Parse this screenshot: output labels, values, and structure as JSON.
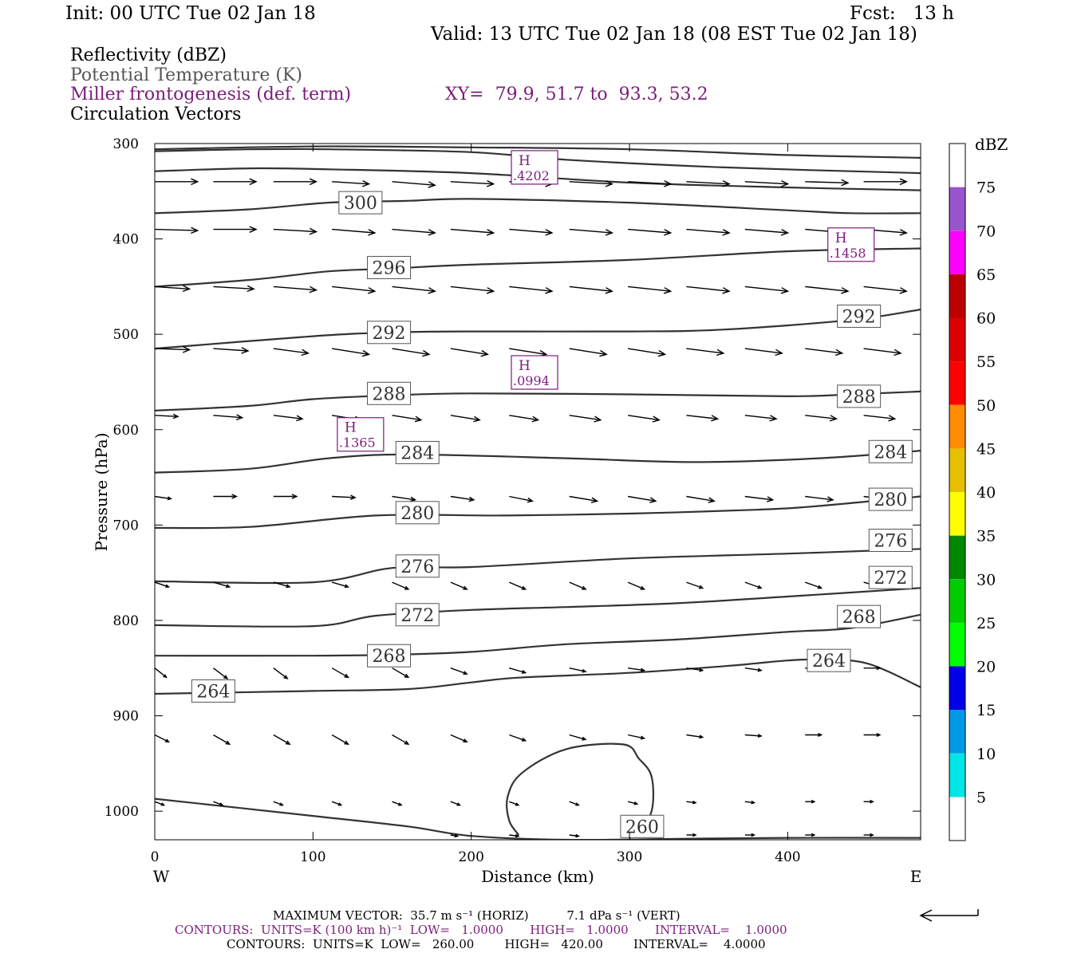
{
  "header": {
    "init": "Init: 00 UTC Tue 02 Jan 18",
    "fcst": "Fcst:   13 h",
    "valid": "Valid: 13 UTC Tue 02 Jan 18 (08 EST Tue 02 Jan 18)",
    "field1": "Reflectivity (dBZ)",
    "field2": "Potential Temperature (K)",
    "field3": "Miller frontogenesis (def. term)",
    "xy": "XY=  79.9, 51.7 to  93.3, 53.2",
    "field4": "Circulation Vectors"
  },
  "colors": {
    "theta": "#333333",
    "frontogenesis": "#7b1c7b",
    "vectors": "#000000"
  },
  "footer": {
    "max_vector": "MAXIMUM VECTOR:  35.7 m s⁻¹ (HORIZ)          7.1 dPa s⁻¹ (VERT)",
    "contours_fg": "CONTOURS:  UNITS=K (100 km h)⁻¹  LOW=   1.0000       HIGH=   1.0000       INTERVAL=    1.0000",
    "contours_theta": "CONTOURS:  UNITS=K  LOW=   260.00        HIGH=   420.00        INTERVAL=    4.0000"
  },
  "chart_data": {
    "type": "cross-section",
    "xlabel": "Distance (km)",
    "ylabel": "Pressure (hPa)",
    "xlim": [
      0,
      484
    ],
    "ylim": [
      1030,
      300
    ],
    "x_ticks": [
      0,
      100,
      200,
      300,
      400
    ],
    "y_ticks": [
      300,
      400,
      500,
      600,
      700,
      800,
      900,
      1000
    ],
    "x_end_labels": {
      "left": "W",
      "right": "E"
    },
    "colorbar": {
      "title": "dBZ",
      "ticks": [
        "5",
        "10",
        "15",
        "20",
        "25",
        "30",
        "35",
        "40",
        "45",
        "50",
        "55",
        "60",
        "65",
        "70",
        "75"
      ],
      "bands": [
        "#ffffff",
        "#00e5e5",
        "#0099e6",
        "#0000e6",
        "#00ff00",
        "#00cc00",
        "#008800",
        "#ffff00",
        "#e6c000",
        "#ff8c00",
        "#ff0000",
        "#dd0000",
        "#bb0000",
        "#ff00ff",
        "#9955cc",
        "#ffffff"
      ]
    },
    "theta_contours": [
      {
        "value": 264,
        "label": "264",
        "points": [
          [
            0,
            877
          ],
          [
            100,
            874
          ],
          [
            160,
            872
          ],
          [
            200,
            865
          ],
          [
            230,
            860
          ],
          [
            300,
            855
          ],
          [
            360,
            848
          ],
          [
            380,
            845
          ],
          [
            400,
            842
          ],
          [
            420,
            841
          ],
          [
            450,
            845
          ],
          [
            484,
            870
          ]
        ]
      },
      {
        "value": 268,
        "label": "268",
        "points": [
          [
            0,
            837
          ],
          [
            100,
            837
          ],
          [
            150,
            836
          ],
          [
            200,
            833
          ],
          [
            260,
            825
          ],
          [
            330,
            820
          ],
          [
            400,
            812
          ],
          [
            440,
            808
          ],
          [
            484,
            794
          ]
        ]
      },
      {
        "value": 272,
        "label": "272",
        "points": [
          [
            0,
            805
          ],
          [
            100,
            806
          ],
          [
            140,
            795
          ],
          [
            200,
            789
          ],
          [
            260,
            786
          ],
          [
            330,
            782
          ],
          [
            400,
            775
          ],
          [
            484,
            766
          ]
        ]
      },
      {
        "value": 276,
        "label": "276",
        "points": [
          [
            0,
            759
          ],
          [
            100,
            760
          ],
          [
            150,
            745
          ],
          [
            200,
            744
          ],
          [
            300,
            735
          ],
          [
            400,
            730
          ],
          [
            484,
            725
          ]
        ]
      },
      {
        "value": 280,
        "label": "280",
        "points": [
          [
            0,
            703
          ],
          [
            60,
            702
          ],
          [
            140,
            690
          ],
          [
            220,
            690
          ],
          [
            300,
            688
          ],
          [
            380,
            684
          ],
          [
            420,
            680
          ],
          [
            484,
            670
          ]
        ]
      },
      {
        "value": 284,
        "label": "284",
        "points": [
          [
            0,
            645
          ],
          [
            60,
            641
          ],
          [
            110,
            630
          ],
          [
            160,
            626
          ],
          [
            260,
            630
          ],
          [
            340,
            634
          ],
          [
            420,
            630
          ],
          [
            484,
            622
          ]
        ]
      },
      {
        "value": 288,
        "label": "288",
        "points": [
          [
            0,
            580
          ],
          [
            60,
            575
          ],
          [
            100,
            568
          ],
          [
            150,
            564
          ],
          [
            200,
            562
          ],
          [
            300,
            563
          ],
          [
            400,
            565
          ],
          [
            440,
            563
          ],
          [
            484,
            560
          ]
        ]
      },
      {
        "value": 292,
        "label": "292",
        "points": [
          [
            0,
            515
          ],
          [
            100,
            502
          ],
          [
            150,
            498
          ],
          [
            200,
            497
          ],
          [
            300,
            497
          ],
          [
            360,
            495
          ],
          [
            440,
            485
          ],
          [
            484,
            474
          ]
        ]
      },
      {
        "value": 296,
        "label": "296",
        "points": [
          [
            0,
            450
          ],
          [
            60,
            443
          ],
          [
            110,
            434
          ],
          [
            150,
            431
          ],
          [
            200,
            427
          ],
          [
            300,
            422
          ],
          [
            400,
            413
          ],
          [
            484,
            410
          ]
        ]
      },
      {
        "value": 300,
        "label": "300",
        "points": [
          [
            0,
            373
          ],
          [
            60,
            369
          ],
          [
            110,
            362
          ],
          [
            160,
            360
          ],
          [
            200,
            358
          ],
          [
            300,
            362
          ],
          [
            400,
            370
          ],
          [
            440,
            373
          ],
          [
            484,
            373
          ]
        ]
      },
      {
        "value": 304,
        "label": "",
        "points": [
          [
            0,
            329
          ],
          [
            60,
            326
          ],
          [
            110,
            327
          ],
          [
            200,
            331
          ],
          [
            300,
            341
          ],
          [
            400,
            346
          ],
          [
            484,
            349
          ]
        ]
      },
      {
        "value": 308,
        "label": "",
        "points": [
          [
            0,
            308
          ],
          [
            60,
            306
          ],
          [
            110,
            306
          ],
          [
            200,
            309
          ],
          [
            260,
            317
          ],
          [
            360,
            325
          ],
          [
            484,
            331
          ]
        ]
      },
      {
        "value": 312,
        "label": "",
        "points": [
          [
            0,
            306
          ],
          [
            100,
            303
          ],
          [
            200,
            304
          ],
          [
            300,
            306
          ],
          [
            400,
            312
          ],
          [
            484,
            315
          ]
        ]
      },
      {
        "value": 260,
        "label": "260",
        "points": [
          [
            0,
            987
          ],
          [
            100,
            1005
          ],
          [
            160,
            1016
          ],
          [
            200,
            1026
          ],
          [
            260,
            1030
          ],
          [
            330,
            1029
          ],
          [
            400,
            1028
          ],
          [
            484,
            1028
          ]
        ]
      },
      {
        "value": 260,
        "label": "",
        "points": [
          [
            230,
            1025
          ],
          [
            224,
            1010
          ],
          [
            223,
            985
          ],
          [
            232,
            960
          ],
          [
            260,
            935
          ],
          [
            296,
            930
          ],
          [
            306,
            945
          ],
          [
            314,
            964
          ],
          [
            314,
            1000
          ],
          [
            305,
            1022
          ],
          [
            300,
            1028
          ]
        ]
      }
    ],
    "theta_labels": [
      {
        "text": "300",
        "x": 130,
        "p": 362
      },
      {
        "text": "296",
        "x": 148,
        "p": 430
      },
      {
        "text": "292",
        "x": 148,
        "p": 498
      },
      {
        "text": "288",
        "x": 148,
        "p": 562
      },
      {
        "text": "284",
        "x": 166,
        "p": 624
      },
      {
        "text": "280",
        "x": 166,
        "p": 687
      },
      {
        "text": "276",
        "x": 166,
        "p": 743
      },
      {
        "text": "272",
        "x": 166,
        "p": 794
      },
      {
        "text": "268",
        "x": 148,
        "p": 837
      },
      {
        "text": "264",
        "x": 37,
        "p": 874
      },
      {
        "text": "292",
        "x": 445,
        "p": 481
      },
      {
        "text": "288",
        "x": 445,
        "p": 565
      },
      {
        "text": "284",
        "x": 465,
        "p": 623
      },
      {
        "text": "280",
        "x": 465,
        "p": 673
      },
      {
        "text": "276",
        "x": 465,
        "p": 716
      },
      {
        "text": "272",
        "x": 465,
        "p": 755
      },
      {
        "text": "268",
        "x": 445,
        "p": 796
      },
      {
        "text": "264",
        "x": 426,
        "p": 842
      },
      {
        "text": "260",
        "x": 308,
        "p": 1016
      }
    ],
    "frontogenesis_maxima": [
      {
        "symbol": "H",
        "value": ".4202",
        "x": 240,
        "p": 325
      },
      {
        "symbol": "H",
        "value": ".1458",
        "x": 440,
        "p": 406
      },
      {
        "symbol": "H",
        "value": ".0994",
        "x": 240,
        "p": 540
      },
      {
        "symbol": "H",
        "value": ".1365",
        "x": 130,
        "p": 605
      }
    ],
    "vector_columns_km": [
      0,
      37,
      75,
      112,
      150,
      187,
      224,
      262,
      299,
      336,
      373,
      411,
      448
    ],
    "vector_rows": [
      {
        "p": 340,
        "u": [
          37,
          37,
          37,
          32,
          37,
          37,
          37,
          37,
          37,
          37,
          37,
          37,
          37
        ],
        "v": [
          0,
          0,
          0,
          -2,
          -3,
          -2,
          -2,
          -2,
          -2,
          -2,
          -2,
          -1,
          0
        ]
      },
      {
        "p": 390,
        "u": [
          37,
          37,
          37,
          37,
          37,
          37,
          37,
          37,
          37,
          37,
          37,
          37,
          37
        ],
        "v": [
          -1,
          0,
          -2,
          -3,
          -3,
          -3,
          -3,
          -3,
          -3,
          -3,
          -3,
          -3,
          -3
        ]
      },
      {
        "p": 450,
        "u": [
          30,
          35,
          37,
          37,
          37,
          37,
          37,
          37,
          37,
          37,
          37,
          37,
          37
        ],
        "v": [
          -2,
          -2,
          -3,
          -4,
          -4,
          -4,
          -4,
          -4,
          -4,
          -4,
          -4,
          -4,
          -4
        ]
      },
      {
        "p": 515,
        "u": [
          30,
          30,
          30,
          32,
          32,
          32,
          32,
          32,
          32,
          32,
          32,
          32,
          32
        ],
        "v": [
          -1,
          -2,
          -4,
          -5,
          -5,
          -5,
          -5,
          -5,
          -5,
          -4,
          -4,
          -4,
          -4
        ]
      },
      {
        "p": 585,
        "u": [
          20,
          25,
          25,
          25,
          25,
          25,
          25,
          27,
          27,
          27,
          27,
          27,
          27
        ],
        "v": [
          -1,
          -2,
          -3,
          -4,
          -4,
          -4,
          -4,
          -4,
          -4,
          -3,
          -3,
          -3,
          -3
        ]
      },
      {
        "p": 670,
        "u": [
          14,
          20,
          20,
          20,
          20,
          20,
          20,
          24,
          24,
          24,
          24,
          24,
          24
        ],
        "v": [
          -2,
          0,
          0,
          -1,
          -3,
          -3,
          -4,
          -4,
          -4,
          -4,
          -3,
          -3,
          -3
        ]
      },
      {
        "p": 760,
        "u": [
          12,
          14,
          14,
          14,
          14,
          14,
          14,
          14,
          14,
          14,
          14,
          14,
          14
        ],
        "v": [
          -4,
          -4,
          -4,
          -4,
          -6,
          -6,
          -6,
          -6,
          -6,
          -5,
          -5,
          -5,
          -4
        ]
      },
      {
        "p": 850,
        "u": [
          10,
          12,
          12,
          14,
          14,
          14,
          14,
          14,
          14,
          14,
          14,
          14,
          14
        ],
        "v": [
          -8,
          -9,
          -9,
          -8,
          -8,
          -5,
          -4,
          -3,
          -2,
          -2,
          -2,
          -1,
          0
        ]
      },
      {
        "p": 920,
        "u": [
          12,
          14,
          14,
          14,
          14,
          14,
          14,
          14,
          14,
          14,
          14,
          14,
          14
        ],
        "v": [
          -6,
          -8,
          -8,
          -8,
          -8,
          -6,
          -5,
          -4,
          -3,
          -2,
          -1,
          0,
          0
        ]
      },
      {
        "p": 990,
        "u": [
          8,
          8,
          8,
          8,
          8,
          8,
          8,
          8,
          8,
          8,
          8,
          8,
          8
        ],
        "v": [
          -3,
          -3,
          -3,
          -3,
          -3,
          -3,
          -3,
          -3,
          -2,
          -1,
          -1,
          0,
          0
        ]
      },
      {
        "p": 1025,
        "u": [
          0,
          0,
          0,
          0,
          0,
          6,
          8,
          8,
          8,
          8,
          8,
          8,
          8
        ],
        "v": [
          0,
          0,
          0,
          0,
          0,
          -1,
          -1,
          -1,
          -1,
          0,
          0,
          0,
          0
        ]
      }
    ],
    "reference_vector": {
      "horiz": 35.7,
      "vert": 7.1
    }
  }
}
